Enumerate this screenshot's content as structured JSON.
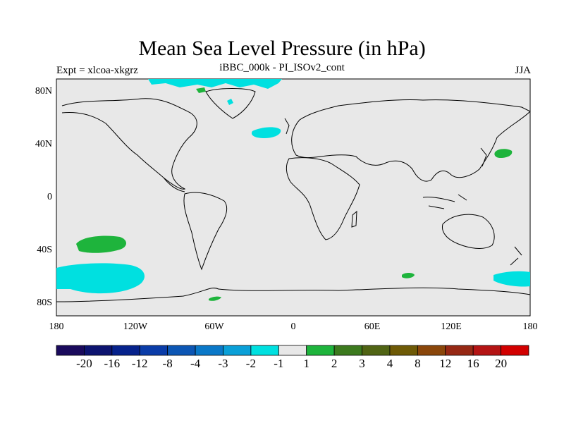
{
  "title": "Mean Sea Level Pressure (in hPa)",
  "left_label": "Expt = xlcoa-xkgrz",
  "center_label": "iBBC_000k - PI_ISOv2_cont",
  "right_label": "JJA",
  "lat_ticks": [
    "80N",
    "40N",
    "0",
    "40S",
    "80S"
  ],
  "lon_ticks": [
    "180",
    "120W",
    "60W",
    "0",
    "60E",
    "120E",
    "180"
  ],
  "colorbar": {
    "colors": [
      "#1a0a5c",
      "#0d1470",
      "#06228c",
      "#0a3ca8",
      "#0c56b4",
      "#0a78c8",
      "#0aa0d8",
      "#00e0e0",
      "#e8e8e8",
      "#1eb43c",
      "#3c7a1e",
      "#506414",
      "#6e5a06",
      "#8a460a",
      "#962814",
      "#b41414",
      "#d20000"
    ],
    "labels": [
      "-20",
      "-16",
      "-12",
      "-8",
      "-4",
      "-3",
      "-2",
      "-1",
      "1",
      "2",
      "3",
      "4",
      "8",
      "12",
      "16",
      "20"
    ]
  },
  "map_colors": {
    "ocean": "#e8e8e8",
    "neg": "#00e0e0",
    "pos": "#1eb43c"
  }
}
